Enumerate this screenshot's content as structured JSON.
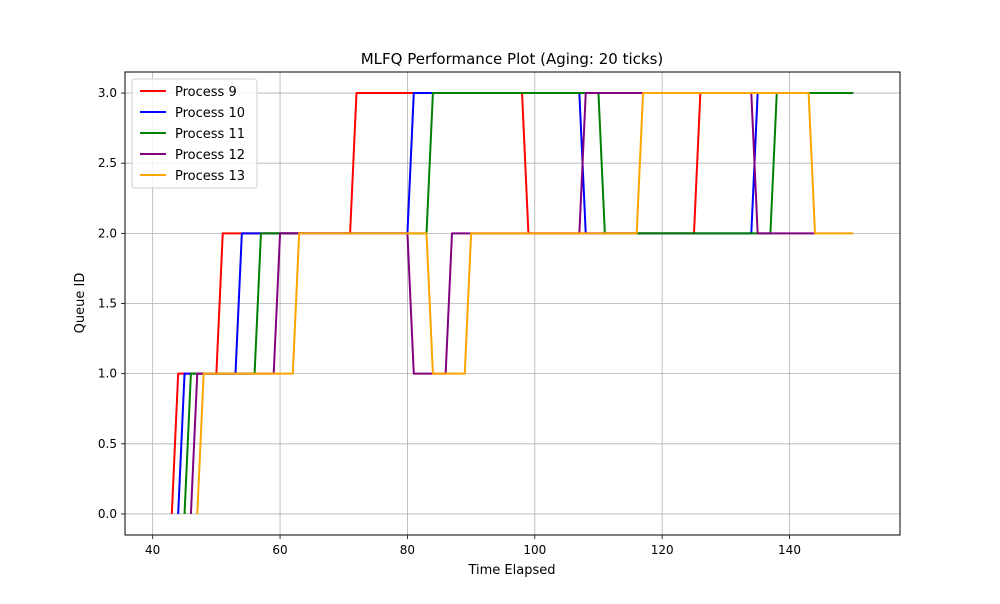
{
  "chart_data": {
    "type": "line",
    "title": "MLFQ Performance Plot (Aging: 20 ticks)",
    "xlabel": "Time Elapsed",
    "ylabel": "Queue ID",
    "xlim": [
      35.65,
      157.35
    ],
    "ylim": [
      -0.15,
      3.15
    ],
    "xticks": [
      40,
      60,
      80,
      100,
      120,
      140
    ],
    "yticks": [
      0.0,
      0.5,
      1.0,
      1.5,
      2.0,
      2.5,
      3.0
    ],
    "xtick_labels": [
      "40",
      "60",
      "80",
      "100",
      "120",
      "140"
    ],
    "ytick_labels": [
      "0.0",
      "0.5",
      "1.0",
      "1.5",
      "2.0",
      "2.5",
      "3.0"
    ],
    "grid": true,
    "legend_position": "upper-left",
    "series": [
      {
        "name": "Process 9",
        "color": "#ff0000",
        "points": [
          [
            43,
            0
          ],
          [
            44,
            1
          ],
          [
            50,
            1
          ],
          [
            51,
            2
          ],
          [
            71,
            2
          ],
          [
            72,
            3
          ],
          [
            98,
            3
          ],
          [
            99,
            2
          ],
          [
            125,
            2
          ],
          [
            126,
            3
          ],
          [
            150,
            3
          ]
        ]
      },
      {
        "name": "Process 10",
        "color": "#0000ff",
        "points": [
          [
            44,
            0
          ],
          [
            45,
            1
          ],
          [
            53,
            1
          ],
          [
            54,
            2
          ],
          [
            80,
            2
          ],
          [
            81,
            3
          ],
          [
            107,
            3
          ],
          [
            108,
            2
          ],
          [
            134,
            2
          ],
          [
            135,
            3
          ],
          [
            150,
            3
          ]
        ]
      },
      {
        "name": "Process 11",
        "color": "#008000",
        "points": [
          [
            45,
            0
          ],
          [
            46,
            1
          ],
          [
            56,
            1
          ],
          [
            57,
            2
          ],
          [
            83,
            2
          ],
          [
            84,
            3
          ],
          [
            110,
            3
          ],
          [
            111,
            2
          ],
          [
            137,
            2
          ],
          [
            138,
            3
          ],
          [
            150,
            3
          ]
        ]
      },
      {
        "name": "Process 12",
        "color": "#800080",
        "points": [
          [
            46,
            0
          ],
          [
            47,
            1
          ],
          [
            59,
            1
          ],
          [
            60,
            2
          ],
          [
            80,
            2
          ],
          [
            81,
            1
          ],
          [
            86,
            1
          ],
          [
            87,
            2
          ],
          [
            107,
            2
          ],
          [
            108,
            3
          ],
          [
            134,
            3
          ],
          [
            135,
            2
          ],
          [
            144,
            2
          ]
        ]
      },
      {
        "name": "Process 13",
        "color": "#ffa500",
        "points": [
          [
            47,
            0
          ],
          [
            48,
            1
          ],
          [
            62,
            1
          ],
          [
            63,
            2
          ],
          [
            83,
            2
          ],
          [
            84,
            1
          ],
          [
            89,
            1
          ],
          [
            90,
            2
          ],
          [
            116,
            2
          ],
          [
            117,
            3
          ],
          [
            143,
            3
          ],
          [
            144,
            2
          ],
          [
            150,
            2
          ]
        ]
      }
    ]
  }
}
